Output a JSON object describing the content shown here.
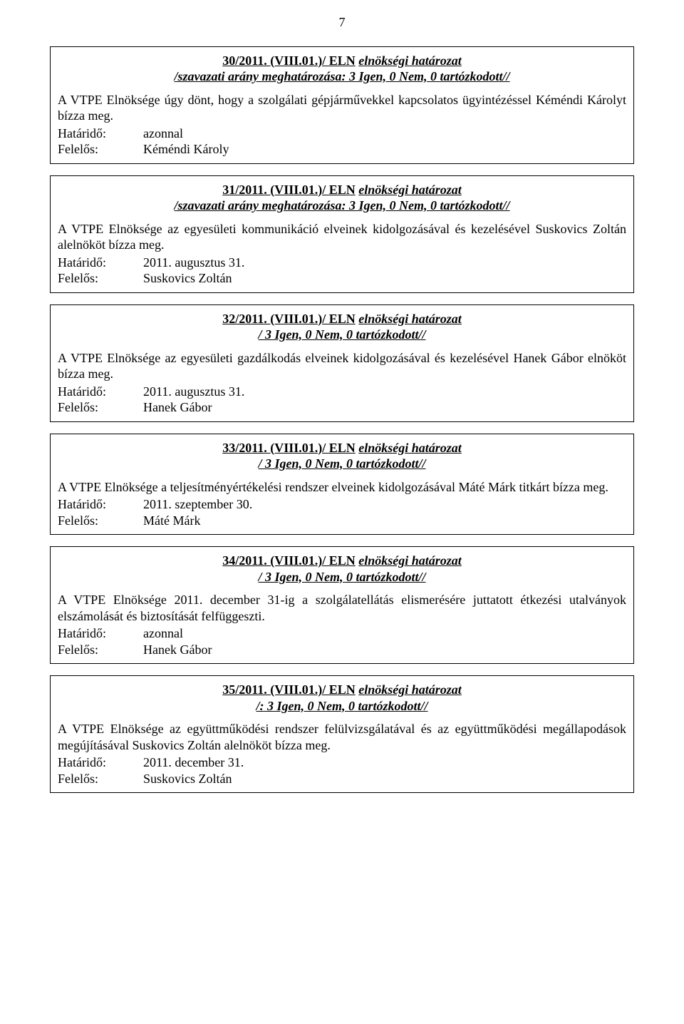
{
  "page_number": "7",
  "resolutions": [
    {
      "number": "30/2011. (VIII.01.)/ ELN",
      "title_tail": "elnökségi határozat",
      "subtitle": "/szavazati arány meghatározása: 3 Igen, 0 Nem, 0 tartózkodott//",
      "body": "A VTPE Elnöksége úgy dönt, hogy a szolgálati gépjárművekkel kapcsolatos ügyintézéssel Kéméndi Károlyt bízza meg.",
      "deadline_label": "Határidő:",
      "deadline_value": "azonnal",
      "responsible_label": "Felelős:",
      "responsible_value": "Kéméndi Károly"
    },
    {
      "number": "31/2011. (VIII.01.)/ ELN",
      "title_tail": "elnökségi határozat",
      "subtitle": "/szavazati arány meghatározása: 3 Igen, 0 Nem, 0 tartózkodott//",
      "body": "A VTPE Elnöksége az egyesületi kommunikáció elveinek kidolgozásával és kezelésével Suskovics Zoltán alelnököt bízza meg.",
      "deadline_label": "Határidő:",
      "deadline_value": "2011. augusztus 31.",
      "responsible_label": "Felelős:",
      "responsible_value": "Suskovics Zoltán"
    },
    {
      "number": "32/2011. (VIII.01.)/ ELN",
      "title_tail": "elnökségi határozat",
      "subtitle": "/ 3 Igen, 0 Nem, 0 tartózkodott//",
      "body": "A VTPE Elnöksége az egyesületi gazdálkodás elveinek kidolgozásával és kezelésével Hanek Gábor elnököt bízza meg.",
      "deadline_label": "Határidő:",
      "deadline_value": "2011. augusztus 31.",
      "responsible_label": "Felelős:",
      "responsible_value": "Hanek Gábor"
    },
    {
      "number": "33/2011. (VIII.01.)/ ELN",
      "title_tail": "elnökségi határozat",
      "subtitle": "/ 3 Igen, 0 Nem, 0 tartózkodott//",
      "body": "A VTPE Elnöksége a teljesítményértékelési rendszer elveinek kidolgozásával Máté Márk titkárt bízza meg.",
      "deadline_label": "Határidő:",
      "deadline_value": "2011. szeptember 30.",
      "responsible_label": "Felelős:",
      "responsible_value": "Máté Márk"
    },
    {
      "number": "34/2011. (VIII.01.)/ ELN",
      "title_tail": "elnökségi határozat",
      "subtitle": "/ 3 Igen, 0 Nem, 0 tartózkodott//",
      "body": "A VTPE Elnöksége 2011. december 31-ig a szolgálatellátás elismerésére juttatott étkezési utalványok elszámolását és biztosítását felfüggeszti.",
      "deadline_label": "Határidő:",
      "deadline_value": "azonnal",
      "responsible_label": "Felelős:",
      "responsible_value": "Hanek Gábor"
    },
    {
      "number": "35/2011. (VIII.01.)/ ELN",
      "title_tail": "elnökségi határozat",
      "subtitle": "/: 3 Igen, 0 Nem, 0 tartózkodott//",
      "body": "A VTPE Elnöksége az együttműködési rendszer felülvizsgálatával és az együttműködési megállapodások megújításával Suskovics Zoltán alelnököt bízza meg.",
      "deadline_label": "Határidő:",
      "deadline_value": "2011. december 31.",
      "responsible_label": "Felelős:",
      "responsible_value": "Suskovics Zoltán"
    }
  ]
}
